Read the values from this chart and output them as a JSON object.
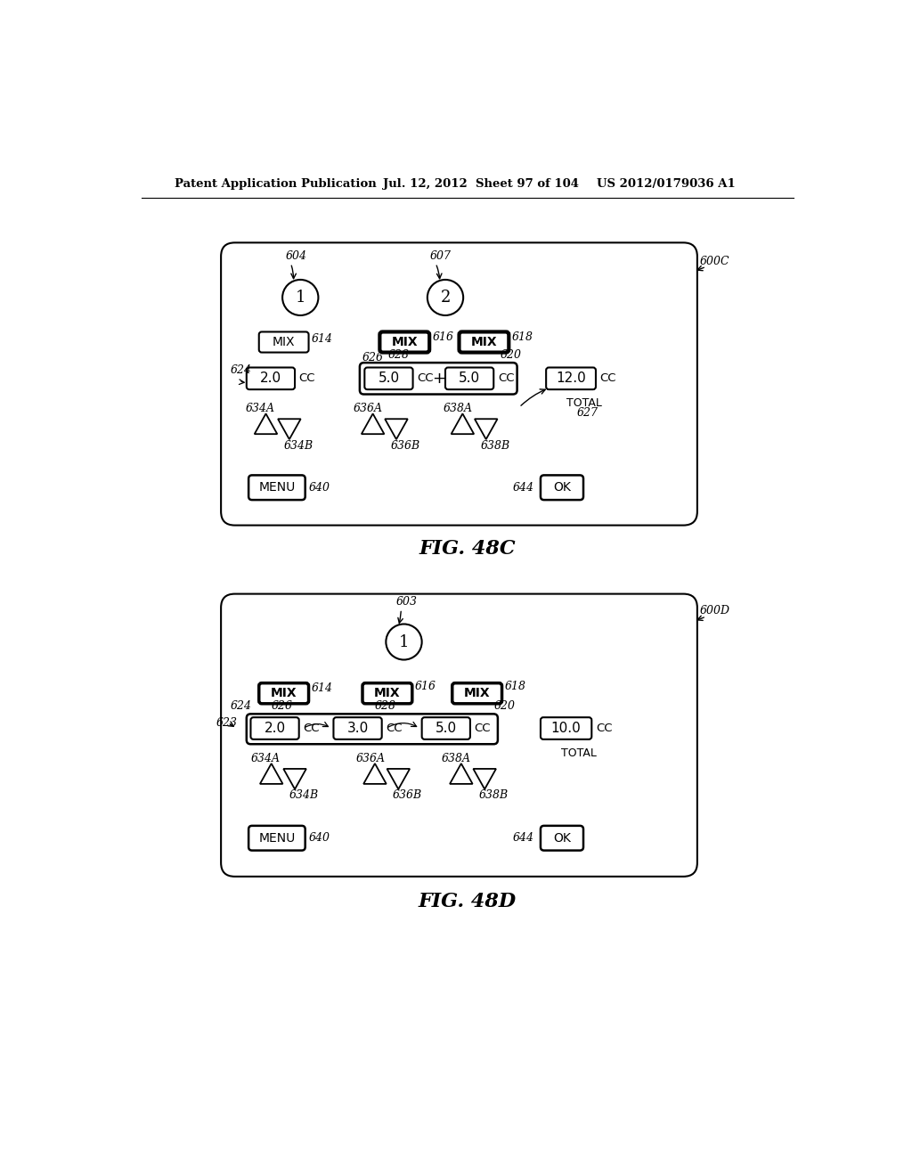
{
  "header_left": "Patent Application Publication",
  "header_mid": "Jul. 12, 2012  Sheet 97 of 104",
  "header_right": "US 2012/0179036 A1",
  "fig_c_label": "FIG. 48C",
  "fig_d_label": "FIG. 48D",
  "ref_600C": "600C",
  "ref_600D": "600D",
  "fig_c": {
    "circle1_label": "1",
    "circle2_label": "2",
    "ref_604": "604",
    "ref_607": "607",
    "mix1_ref": "614",
    "mix2_ref": "616",
    "mix3_ref": "618",
    "val1": "2.0",
    "val2a": "5.0",
    "val2b": "5.0",
    "val_total": "12.0",
    "ref_624": "624",
    "ref_626": "626",
    "ref_628": "628",
    "ref_620": "620",
    "ref_634A": "634A",
    "ref_634B": "634B",
    "ref_636A": "636A",
    "ref_636B": "636B",
    "ref_638A": "638A",
    "ref_638B": "638B",
    "ref_640": "640",
    "ref_644": "644",
    "ref_627": "627",
    "total_label": "TOTAL",
    "menu_label": "MENU",
    "ok_label": "OK"
  },
  "fig_d": {
    "circle1_label": "1",
    "ref_603": "603",
    "mix1_ref": "614",
    "mix2_ref": "616",
    "mix3_ref": "618",
    "val1": "2.0",
    "val2": "3.0",
    "val3": "5.0",
    "val_total": "10.0",
    "ref_624": "624",
    "ref_626": "626",
    "ref_628": "628",
    "ref_620": "620",
    "ref_623": "623",
    "ref_634A": "634A",
    "ref_634B": "634B",
    "ref_636A": "636A",
    "ref_636B": "636B",
    "ref_638A": "638A",
    "ref_638B": "638B",
    "ref_640": "640",
    "ref_644": "644",
    "total_label": "TOTAL",
    "menu_label": "MENU",
    "ok_label": "OK"
  }
}
